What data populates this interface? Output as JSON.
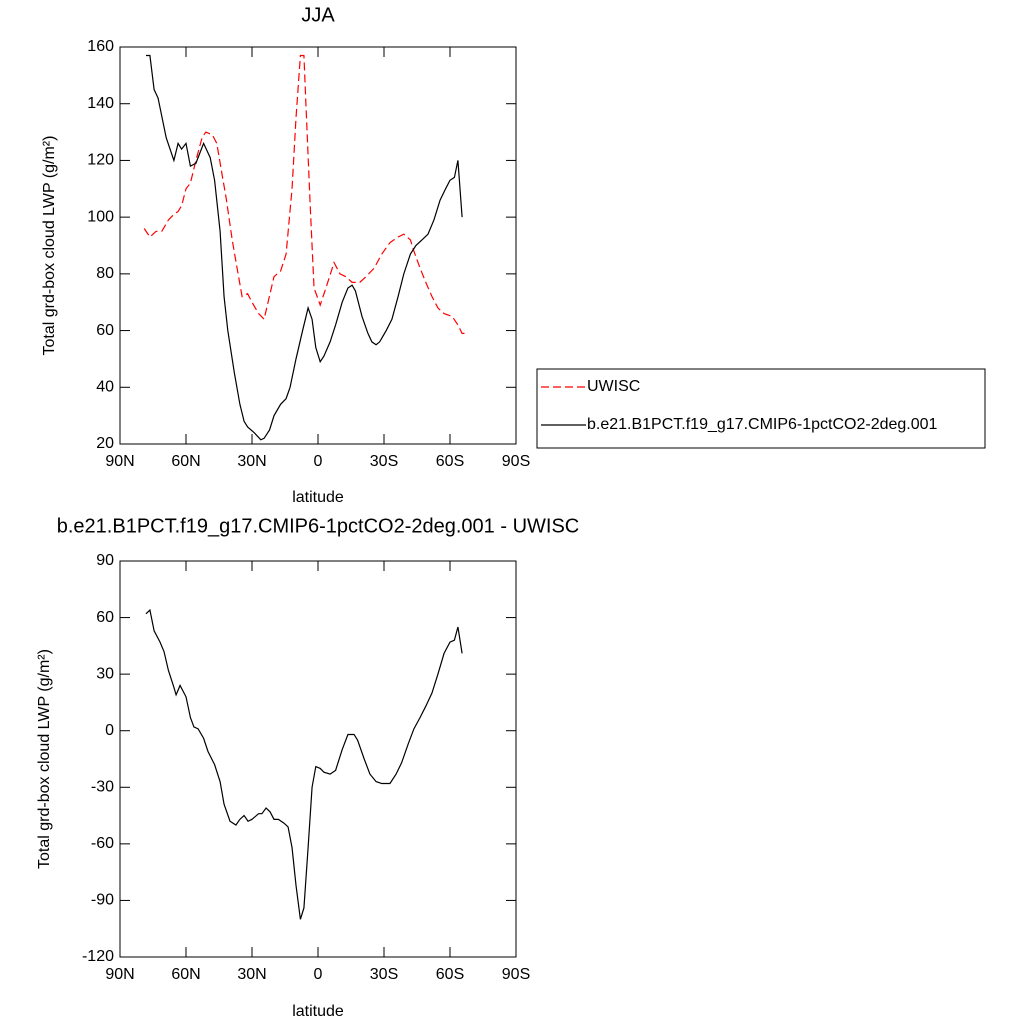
{
  "chart_data": [
    {
      "type": "line",
      "title": "JJA",
      "xlabel": "latitude",
      "ylabel": "Total grd-box cloud LWP (g/m²)",
      "xlim": [
        90,
        -90
      ],
      "xticks": [
        {
          "value": 90,
          "label": "90N"
        },
        {
          "value": 60,
          "label": "60N"
        },
        {
          "value": 30,
          "label": "30N"
        },
        0,
        {
          "value": -30,
          "label": "30S"
        },
        {
          "value": -60,
          "label": "60S"
        },
        {
          "value": -90,
          "label": "90S"
        }
      ],
      "ylim": [
        20,
        160
      ],
      "yticks": [
        20,
        40,
        60,
        80,
        100,
        120,
        140,
        160
      ],
      "legend": "right",
      "series": [
        {
          "name": "UWISC",
          "color": "#ff0000",
          "style": "dashed",
          "x": [
            79,
            76.4,
            73.6,
            71,
            68,
            65.5,
            63.6,
            62,
            60,
            58,
            55.5,
            52.7,
            51,
            48,
            46,
            43.6,
            41.8,
            39,
            37,
            34.5,
            32,
            30,
            27,
            24.5,
            22.7,
            20,
            17,
            14.5,
            11.8,
            10,
            8,
            6.4,
            5.5,
            3.6,
            1.8,
            -1,
            -3.6,
            -7.3,
            -10,
            -12.7,
            -15.5,
            -19,
            -21.8,
            -25.5,
            -29,
            -32.7,
            -36.4,
            -39,
            -42,
            -43.6,
            -46.4,
            -49,
            -51.8,
            -54.5,
            -57.3,
            -61,
            -63.6,
            -65.5,
            -67.3
          ],
          "values": [
            96,
            93,
            95,
            95,
            99,
            101,
            102,
            104,
            110,
            112,
            120,
            128,
            130,
            129,
            126,
            115,
            107,
            92,
            83,
            72,
            73,
            70,
            66,
            64,
            70,
            79,
            81,
            87,
            110,
            135,
            157,
            157,
            140,
            105,
            75,
            69,
            75,
            84,
            80,
            79,
            77,
            77,
            79,
            82,
            87,
            91,
            93,
            94,
            92,
            88,
            82,
            77,
            72,
            68,
            66,
            65,
            62,
            59,
            59
          ]
        },
        {
          "name": "b.e21.B1PCT.f19_g17.CMIP6-1pctCO2-2deg.001",
          "color": "#000000",
          "style": "solid",
          "x": [
            78.2,
            76.4,
            74.5,
            72.7,
            69,
            65.5,
            63.6,
            62,
            60,
            58,
            55.5,
            52,
            49,
            47,
            44.5,
            42.7,
            41,
            38,
            35.5,
            33.6,
            32,
            29,
            26,
            24.5,
            22,
            20,
            17,
            14.5,
            12.7,
            10,
            7,
            4.5,
            2.7,
            1,
            -1,
            -2.7,
            -5.5,
            -8,
            -11,
            -13.6,
            -15.5,
            -17,
            -20,
            -22.7,
            -24.5,
            -26.4,
            -28,
            -31,
            -33.6,
            -36.4,
            -39,
            -42,
            -44.5,
            -47.3,
            -50,
            -52.7,
            -55.5,
            -58,
            -60,
            -62,
            -63.6,
            -65.5
          ],
          "values": [
            157,
            157,
            145,
            142,
            128,
            120,
            126,
            124,
            126,
            118,
            119,
            126,
            121,
            113,
            95,
            72,
            60,
            45,
            34,
            28,
            26,
            24,
            21.5,
            22,
            25,
            30,
            34,
            36,
            40,
            50,
            60,
            68,
            64,
            54,
            49,
            51,
            56,
            62,
            70,
            75,
            76,
            74,
            65,
            59,
            56,
            55,
            56,
            60,
            64,
            72,
            80,
            87,
            90,
            92,
            94,
            99,
            106,
            110,
            113,
            114,
            120,
            100
          ]
        }
      ]
    },
    {
      "type": "line",
      "title": "b.e21.B1PCT.f19_g17.CMIP6-1pctCO2-2deg.001 - UWISC",
      "xlabel": "latitude",
      "ylabel": "Total grd-box cloud LWP (g/m²)",
      "xlim": [
        90,
        -90
      ],
      "xticks": [
        {
          "value": 90,
          "label": "90N"
        },
        {
          "value": 60,
          "label": "60N"
        },
        {
          "value": 30,
          "label": "30N"
        },
        0,
        {
          "value": -30,
          "label": "30S"
        },
        {
          "value": -60,
          "label": "60S"
        },
        {
          "value": -90,
          "label": "90S"
        }
      ],
      "ylim": [
        -120,
        90
      ],
      "yticks": [
        -120,
        -90,
        -60,
        -30,
        0,
        30,
        60,
        90
      ],
      "series": [
        {
          "color": "#000000",
          "style": "solid",
          "x": [
            78.2,
            76.4,
            74.5,
            71.8,
            70,
            68,
            65.5,
            64.5,
            62.7,
            60,
            58,
            56.4,
            54.5,
            52,
            50,
            47,
            44.5,
            42.7,
            40,
            37.3,
            35.5,
            33.6,
            31.8,
            30,
            27,
            25.5,
            23.6,
            21.8,
            20,
            18,
            15.5,
            13.6,
            11.8,
            10,
            8,
            6.4,
            4.5,
            2.7,
            1,
            -1,
            -2.7,
            -5.5,
            -8,
            -11,
            -13.6,
            -16.4,
            -18,
            -21,
            -23.6,
            -26.4,
            -29,
            -32.7,
            -35.5,
            -38,
            -41,
            -43.6,
            -46.4,
            -49,
            -51.8,
            -54.5,
            -57.3,
            -60,
            -62,
            -63.6,
            -65.5
          ],
          "values": [
            62,
            64,
            53,
            47,
            42,
            32,
            23,
            19,
            24,
            18,
            7,
            2,
            1,
            -4,
            -11,
            -18,
            -27,
            -39,
            -48,
            -50,
            -47,
            -45,
            -48,
            -47,
            -44,
            -44,
            -41,
            -43,
            -47,
            -47,
            -49,
            -51,
            -62,
            -82,
            -100,
            -94,
            -62,
            -30,
            -19,
            -20,
            -22,
            -23,
            -21,
            -10,
            -2,
            -2,
            -5,
            -15,
            -23,
            -27,
            -28,
            -28,
            -23,
            -17,
            -7,
            1,
            7,
            13,
            20,
            30,
            41,
            47,
            48,
            55,
            41
          ]
        }
      ]
    }
  ]
}
